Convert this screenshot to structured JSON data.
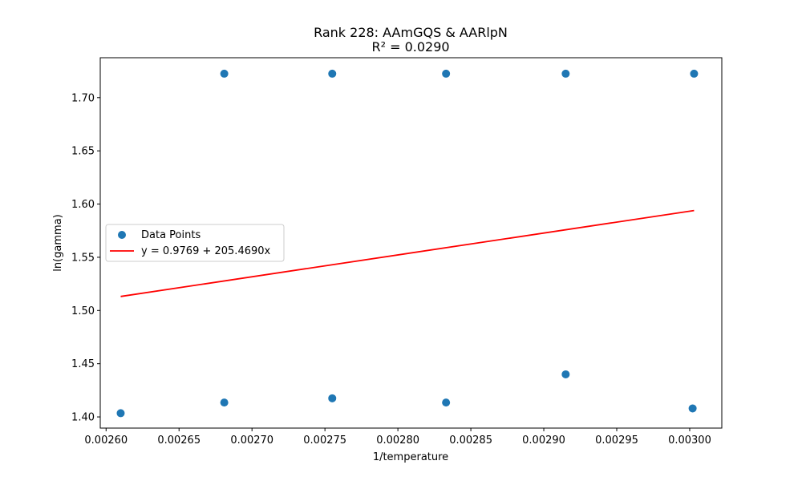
{
  "chart_data": {
    "type": "scatter",
    "title": "Rank 228: AAmGQS & AARlpN",
    "subtitle": "R² = 0.0290",
    "xlabel": "1/temperature",
    "ylabel": "ln(gamma)",
    "xlim": [
      0.002596,
      0.003022
    ],
    "ylim": [
      1.3895,
      1.7375
    ],
    "xticks": [
      0.0026,
      0.00265,
      0.0027,
      0.00275,
      0.0028,
      0.00285,
      0.0029,
      0.00295,
      0.003
    ],
    "xtick_labels": [
      "0.00260",
      "0.00265",
      "0.00270",
      "0.00275",
      "0.00280",
      "0.00285",
      "0.00290",
      "0.00295",
      "0.00300"
    ],
    "yticks": [
      1.4,
      1.45,
      1.5,
      1.55,
      1.6,
      1.65,
      1.7
    ],
    "ytick_labels": [
      "1.40",
      "1.45",
      "1.50",
      "1.55",
      "1.60",
      "1.65",
      "1.70"
    ],
    "grid": false,
    "legend_position": "center-left",
    "series": [
      {
        "name": "Data Points",
        "kind": "scatter",
        "color": "#1f77b4",
        "points": [
          {
            "x": 0.00261,
            "y": 1.4035
          },
          {
            "x": 0.002681,
            "y": 1.4135
          },
          {
            "x": 0.002681,
            "y": 1.7225
          },
          {
            "x": 0.002755,
            "y": 1.4175
          },
          {
            "x": 0.002755,
            "y": 1.7225
          },
          {
            "x": 0.002833,
            "y": 1.4135
          },
          {
            "x": 0.002833,
            "y": 1.7225
          },
          {
            "x": 0.002915,
            "y": 1.44
          },
          {
            "x": 0.002915,
            "y": 1.7225
          },
          {
            "x": 0.003002,
            "y": 1.408
          },
          {
            "x": 0.003003,
            "y": 1.7225
          }
        ]
      },
      {
        "name": "y = 0.9769 + 205.4690x",
        "kind": "line",
        "color": "#ff0000",
        "intercept": 0.9769,
        "slope": 205.469,
        "x_range": [
          0.00261,
          0.003003
        ]
      }
    ]
  }
}
